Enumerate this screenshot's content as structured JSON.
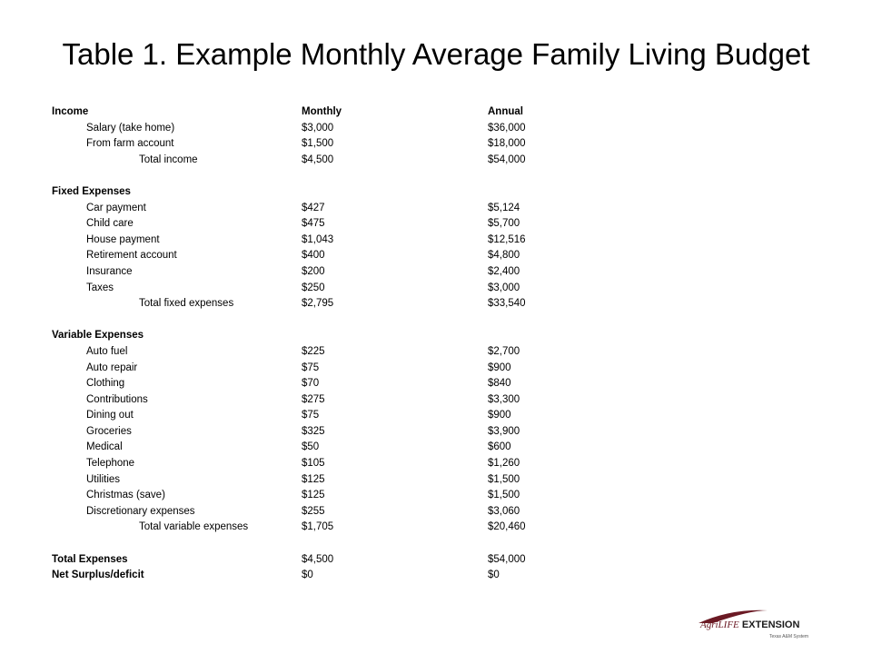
{
  "title": "Table 1. Example Monthly Average Family Living Budget",
  "header": {
    "label": "Income",
    "monthly": "Monthly",
    "annual": "Annual"
  },
  "income": [
    {
      "label": "Salary (take home)",
      "monthly": "$3,000",
      "annual": "$36,000"
    },
    {
      "label": "From farm account",
      "monthly": "$1,500",
      "annual": "$18,000"
    }
  ],
  "income_total": {
    "label": "Total income",
    "monthly": "$4,500",
    "annual": "$54,000"
  },
  "fixed_heading": "Fixed Expenses",
  "fixed": [
    {
      "label": "Car payment",
      "monthly": "$427",
      "annual": "$5,124"
    },
    {
      "label": "Child care",
      "monthly": "$475",
      "annual": "$5,700"
    },
    {
      "label": "House payment",
      "monthly": "$1,043",
      "annual": "$12,516"
    },
    {
      "label": "Retirement account",
      "monthly": "$400",
      "annual": "$4,800"
    },
    {
      "label": "Insurance",
      "monthly": "$200",
      "annual": "$2,400"
    },
    {
      "label": "Taxes",
      "monthly": "$250",
      "annual": "$3,000"
    }
  ],
  "fixed_total": {
    "label": "Total fixed expenses",
    "monthly": "$2,795",
    "annual": "$33,540"
  },
  "variable_heading": "Variable Expenses",
  "variable": [
    {
      "label": "Auto fuel",
      "monthly": "$225",
      "annual": "$2,700"
    },
    {
      "label": "Auto repair",
      "monthly": "$75",
      "annual": "$900"
    },
    {
      "label": "Clothing",
      "monthly": "$70",
      "annual": "$840"
    },
    {
      "label": "Contributions",
      "monthly": "$275",
      "annual": "$3,300"
    },
    {
      "label": "Dining out",
      "monthly": "$75",
      "annual": "$900"
    },
    {
      "label": "Groceries",
      "monthly": "$325",
      "annual": "$3,900"
    },
    {
      "label": "Medical",
      "monthly": "$50",
      "annual": "$600"
    },
    {
      "label": "Telephone",
      "monthly": "$105",
      "annual": "$1,260"
    },
    {
      "label": "Utilities",
      "monthly": "$125",
      "annual": "$1,500"
    },
    {
      "label": "Christmas (save)",
      "monthly": "$125",
      "annual": "$1,500"
    },
    {
      "label": "Discretionary expenses",
      "monthly": "$255",
      "annual": "$3,060"
    }
  ],
  "variable_total": {
    "label": "Total variable expenses",
    "monthly": "$1,705",
    "annual": "$20,460"
  },
  "total_expenses": {
    "label": "Total Expenses",
    "monthly": "$4,500",
    "annual": "$54,000"
  },
  "net": {
    "label": "Net Surplus/deficit",
    "monthly": "$0",
    "annual": "$0"
  },
  "logo": {
    "agri": "AgriLIFE",
    "extension": "EXTENSION",
    "sub": "Texas A&M System",
    "accent_color": "#6b1a24"
  }
}
